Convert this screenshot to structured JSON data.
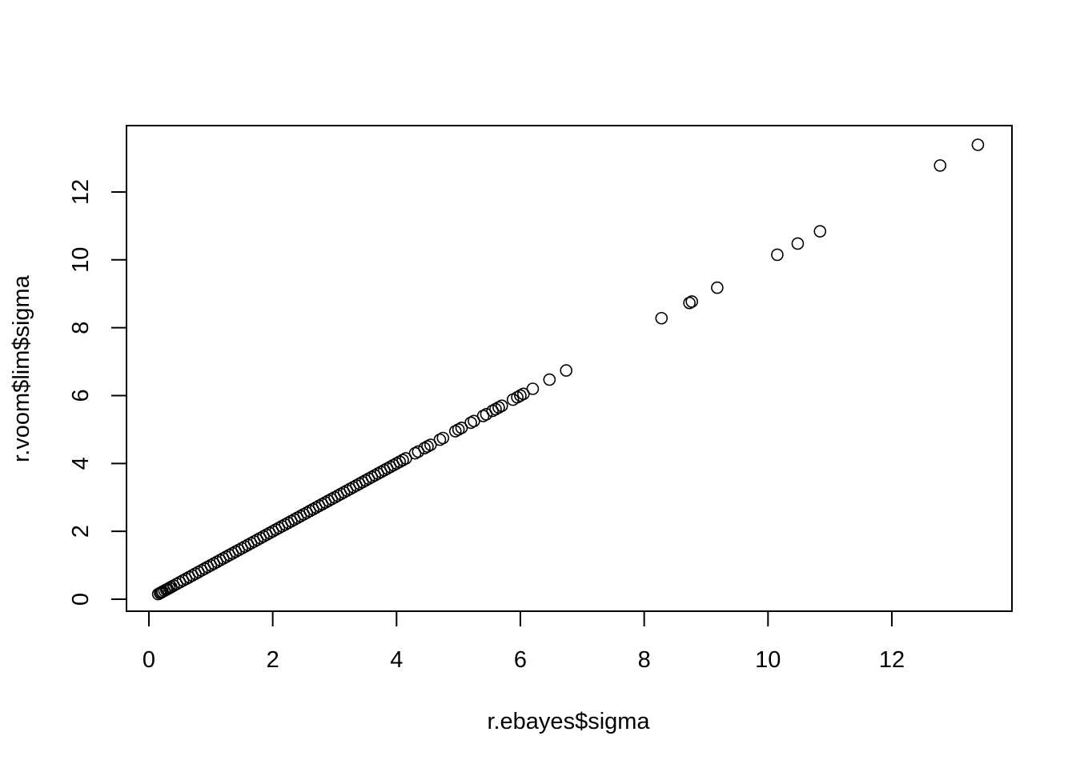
{
  "chart_data": {
    "type": "scatter",
    "title": "",
    "xlabel": "r.ebayes$sigma",
    "ylabel": "r.voom$lim$sigma",
    "xlim": [
      0,
      13.6
    ],
    "ylim": [
      0,
      13.6
    ],
    "x_ticks": [
      0,
      2,
      4,
      6,
      8,
      10,
      12
    ],
    "y_ticks": [
      0,
      2,
      4,
      6,
      8,
      10,
      12
    ],
    "x_tick_labels": [
      "0",
      "2",
      "4",
      "6",
      "8",
      "10",
      "12"
    ],
    "y_tick_labels": [
      "0",
      "2",
      "4",
      "6",
      "8",
      "10",
      "12"
    ],
    "grid": false,
    "legend": "none",
    "marker": "open-circle",
    "marker_color": "#000000",
    "points": [
      [
        0.15,
        0.15
      ],
      [
        0.18,
        0.18
      ],
      [
        0.2,
        0.2
      ],
      [
        0.22,
        0.22
      ],
      [
        0.25,
        0.25
      ],
      [
        0.28,
        0.28
      ],
      [
        0.3,
        0.3
      ],
      [
        0.33,
        0.33
      ],
      [
        0.36,
        0.36
      ],
      [
        0.4,
        0.4
      ],
      [
        0.45,
        0.45
      ],
      [
        0.5,
        0.5
      ],
      [
        0.55,
        0.55
      ],
      [
        0.6,
        0.6
      ],
      [
        0.65,
        0.65
      ],
      [
        0.7,
        0.7
      ],
      [
        0.75,
        0.75
      ],
      [
        0.8,
        0.8
      ],
      [
        0.85,
        0.85
      ],
      [
        0.9,
        0.9
      ],
      [
        0.95,
        0.95
      ],
      [
        1.0,
        1.0
      ],
      [
        1.05,
        1.05
      ],
      [
        1.1,
        1.1
      ],
      [
        1.15,
        1.15
      ],
      [
        1.2,
        1.2
      ],
      [
        1.25,
        1.25
      ],
      [
        1.3,
        1.3
      ],
      [
        1.35,
        1.35
      ],
      [
        1.4,
        1.4
      ],
      [
        1.45,
        1.45
      ],
      [
        1.5,
        1.5
      ],
      [
        1.55,
        1.55
      ],
      [
        1.6,
        1.6
      ],
      [
        1.65,
        1.65
      ],
      [
        1.7,
        1.7
      ],
      [
        1.75,
        1.75
      ],
      [
        1.8,
        1.8
      ],
      [
        1.85,
        1.85
      ],
      [
        1.9,
        1.9
      ],
      [
        1.95,
        1.95
      ],
      [
        2.0,
        2.0
      ],
      [
        2.05,
        2.05
      ],
      [
        2.1,
        2.1
      ],
      [
        2.15,
        2.15
      ],
      [
        2.2,
        2.2
      ],
      [
        2.25,
        2.25
      ],
      [
        2.3,
        2.3
      ],
      [
        2.35,
        2.35
      ],
      [
        2.4,
        2.4
      ],
      [
        2.45,
        2.45
      ],
      [
        2.5,
        2.5
      ],
      [
        2.55,
        2.55
      ],
      [
        2.6,
        2.6
      ],
      [
        2.65,
        2.65
      ],
      [
        2.7,
        2.7
      ],
      [
        2.75,
        2.75
      ],
      [
        2.8,
        2.8
      ],
      [
        2.85,
        2.85
      ],
      [
        2.9,
        2.9
      ],
      [
        2.95,
        2.95
      ],
      [
        3.0,
        3.0
      ],
      [
        3.05,
        3.05
      ],
      [
        3.1,
        3.1
      ],
      [
        3.15,
        3.15
      ],
      [
        3.2,
        3.2
      ],
      [
        3.25,
        3.25
      ],
      [
        3.3,
        3.3
      ],
      [
        3.35,
        3.35
      ],
      [
        3.4,
        3.4
      ],
      [
        3.45,
        3.45
      ],
      [
        3.5,
        3.5
      ],
      [
        3.55,
        3.55
      ],
      [
        3.6,
        3.6
      ],
      [
        3.65,
        3.65
      ],
      [
        3.7,
        3.7
      ],
      [
        3.75,
        3.75
      ],
      [
        3.8,
        3.8
      ],
      [
        3.85,
        3.85
      ],
      [
        3.9,
        3.9
      ],
      [
        3.95,
        3.95
      ],
      [
        4.0,
        4.0
      ],
      [
        4.05,
        4.05
      ],
      [
        4.1,
        4.1
      ],
      [
        4.15,
        4.15
      ],
      [
        4.3,
        4.3
      ],
      [
        4.35,
        4.35
      ],
      [
        4.45,
        4.45
      ],
      [
        4.5,
        4.5
      ],
      [
        4.55,
        4.55
      ],
      [
        4.7,
        4.7
      ],
      [
        4.75,
        4.75
      ],
      [
        4.95,
        4.95
      ],
      [
        5.0,
        5.0
      ],
      [
        5.05,
        5.05
      ],
      [
        5.2,
        5.2
      ],
      [
        5.25,
        5.25
      ],
      [
        5.4,
        5.4
      ],
      [
        5.45,
        5.45
      ],
      [
        5.55,
        5.55
      ],
      [
        5.6,
        5.6
      ],
      [
        5.65,
        5.65
      ],
      [
        5.7,
        5.7
      ],
      [
        5.88,
        5.88
      ],
      [
        5.95,
        5.95
      ],
      [
        6.0,
        6.0
      ],
      [
        6.05,
        6.05
      ],
      [
        6.2,
        6.2
      ],
      [
        6.47,
        6.47
      ],
      [
        6.74,
        6.74
      ],
      [
        8.28,
        8.28
      ],
      [
        8.73,
        8.73
      ],
      [
        8.77,
        8.77
      ],
      [
        9.18,
        9.18
      ],
      [
        10.15,
        10.15
      ],
      [
        10.48,
        10.48
      ],
      [
        10.84,
        10.84
      ],
      [
        12.78,
        12.78
      ],
      [
        13.39,
        13.39
      ]
    ]
  }
}
